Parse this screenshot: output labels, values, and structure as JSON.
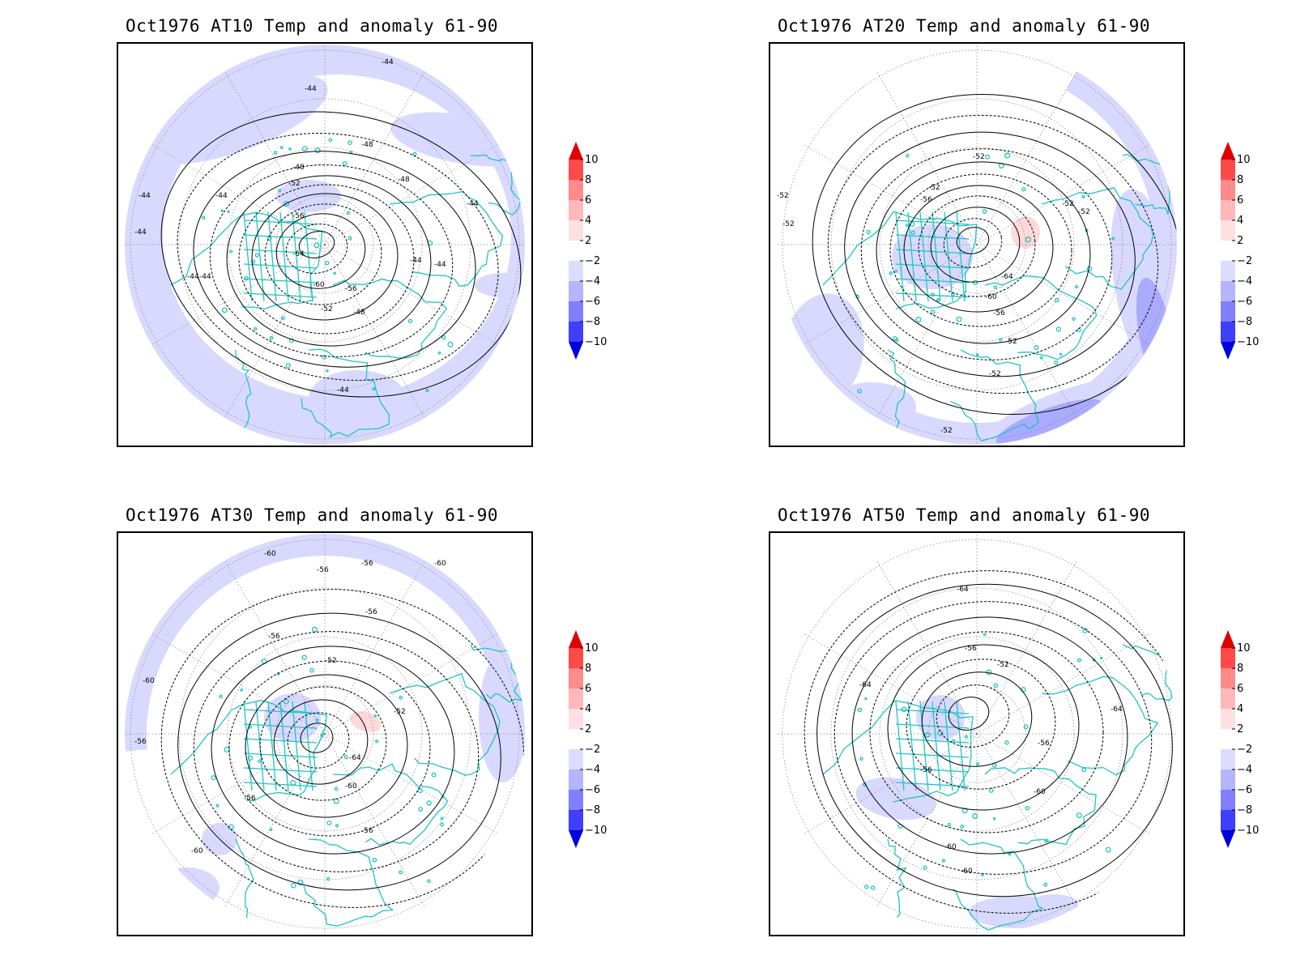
{
  "colors": {
    "anomaly_neg_2_4": "#d9d9ff",
    "anomaly_neg_4_6": "#aaaaff",
    "anomaly_pos_2_4": "#ffd9d9",
    "coastline": "#20c4c4",
    "contour": "#000000",
    "grid": "#808080"
  },
  "legend": {
    "levels": [
      "10",
      "8",
      "6",
      "4",
      "2",
      "−2",
      "−4",
      "−6",
      "−8",
      "−10"
    ],
    "colors": [
      "#e00000",
      "#ff4a4a",
      "#ff8a8a",
      "#ffb8b8",
      "#ffe0e0",
      "#ffffff",
      "#dcdcff",
      "#b4b4ff",
      "#7f7fff",
      "#3f3fff",
      "#0000e0"
    ]
  },
  "panels": [
    {
      "title": "Oct1976 AT10 Temp and anomaly 61-90",
      "contour_labels": [
        "-44",
        "-44",
        "-44",
        "-44",
        "-44",
        "-44",
        "-44",
        "-44",
        "-44",
        "-44",
        "-44",
        "-48",
        "-48",
        "-48",
        "-48",
        "-52",
        "-52",
        "-56",
        "-56",
        "-60",
        "-64"
      ]
    },
    {
      "title": "Oct1976 AT20 Temp and anomaly 61-90",
      "contour_labels": [
        "-52",
        "-52",
        "-52",
        "-52",
        "-52",
        "-52",
        "-52",
        "-52",
        "-52",
        "-52",
        "-56",
        "-56",
        "-60",
        "-64"
      ]
    },
    {
      "title": "Oct1976 AT30 Temp and anomaly 61-90",
      "contour_labels": [
        "-60",
        "-60",
        "-60",
        "-60",
        "-56",
        "-56",
        "-56",
        "-56",
        "-56",
        "-56",
        "-56",
        "-52",
        "-52",
        "-60",
        "-64"
      ]
    },
    {
      "title": "Oct1976 AT50 Temp and anomaly 61-90",
      "contour_labels": [
        "-64",
        "-64",
        "-64",
        "-60",
        "-56",
        "-52",
        "-56",
        "-56",
        "-60",
        "-60"
      ]
    }
  ]
}
